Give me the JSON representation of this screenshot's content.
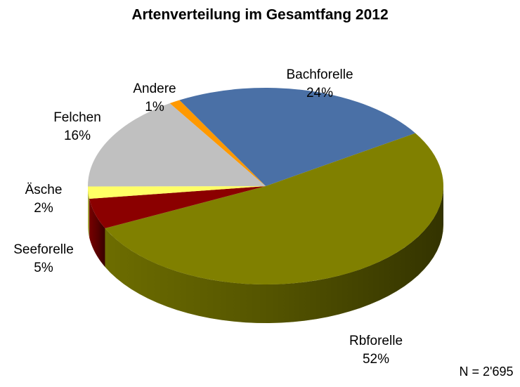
{
  "chart_data": {
    "type": "pie",
    "title": "Artenverteilung im Gesamtfang 2012",
    "categories": [
      "Bachforelle",
      "Rbforelle",
      "Seeforelle",
      "Äsche",
      "Felchen",
      "Andere"
    ],
    "values": [
      24,
      52,
      5,
      2,
      16,
      1
    ],
    "value_labels": [
      "24%",
      "52%",
      "5%",
      "2%",
      "16%",
      "1%"
    ],
    "colors": [
      "#4a70a6",
      "#808000",
      "#8b0000",
      "#ffff66",
      "#c0c0c0",
      "#ff9900"
    ],
    "annotation": "N = 2'695"
  }
}
